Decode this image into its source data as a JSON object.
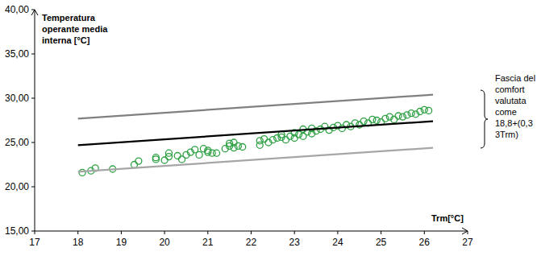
{
  "chart_data": {
    "type": "scatter",
    "y_label": [
      "Temperatura",
      "operante media",
      "interna [°C]"
    ],
    "x_label": "Trm[°C]",
    "annotation": [
      "Fascia del",
      "comfort",
      "valutata",
      "come",
      "18,8+(0,3",
      "3Trm)"
    ],
    "xlim": [
      17,
      27
    ],
    "xticks": [
      17,
      18,
      19,
      20,
      21,
      22,
      23,
      24,
      25,
      26,
      27
    ],
    "ylim": [
      15,
      40
    ],
    "yticks": [
      {
        "value": 15,
        "label": "15,00"
      },
      {
        "value": 20,
        "label": "20,00"
      },
      {
        "value": 25,
        "label": "25,00"
      },
      {
        "value": 30,
        "label": "30,00"
      },
      {
        "value": 35,
        "label": "35,00"
      },
      {
        "value": 40,
        "label": "40,00"
      }
    ],
    "grid": false,
    "series": [
      {
        "type": "scatter",
        "color": "#2ea043",
        "marker": "circle",
        "x": [
          18.1,
          18.3,
          18.4,
          18.8,
          19.3,
          19.4,
          19.8,
          19.8,
          20.0,
          20.1,
          20.1,
          20.3,
          20.4,
          20.5,
          20.6,
          20.7,
          20.8,
          20.9,
          21.0,
          21.0,
          21.1,
          21.2,
          21.4,
          21.5,
          21.5,
          21.6,
          21.6,
          21.7,
          21.8,
          22.2,
          22.2,
          22.3,
          22.4,
          22.5,
          22.6,
          22.7,
          22.7,
          22.8,
          22.9,
          23.0,
          23.0,
          23.1,
          23.2,
          23.2,
          23.3,
          23.4,
          23.4,
          23.5,
          23.6,
          23.7,
          23.8,
          23.9,
          24.0,
          24.1,
          24.2,
          24.3,
          24.4,
          24.5,
          24.6,
          24.7,
          24.8,
          24.9,
          25.0,
          25.1,
          25.2,
          25.3,
          25.4,
          25.5,
          25.6,
          25.7,
          25.8,
          25.9,
          26.0,
          26.1
        ],
        "values": [
          21.6,
          21.8,
          22.1,
          22.0,
          22.5,
          22.9,
          23.3,
          23.1,
          23.0,
          23.4,
          23.8,
          23.5,
          23.1,
          23.6,
          23.9,
          24.2,
          23.6,
          24.3,
          23.9,
          24.1,
          23.8,
          23.8,
          24.3,
          24.6,
          24.9,
          24.4,
          25.0,
          24.6,
          24.5,
          24.7,
          25.2,
          25.4,
          25.0,
          25.3,
          25.5,
          25.6,
          25.9,
          25.3,
          25.7,
          25.5,
          26.1,
          25.9,
          25.7,
          26.5,
          26.2,
          26.0,
          26.6,
          26.3,
          26.5,
          26.8,
          26.4,
          26.7,
          26.9,
          26.6,
          27.0,
          26.8,
          27.2,
          27.0,
          27.4,
          27.2,
          27.6,
          27.5,
          27.3,
          27.7,
          27.9,
          27.6,
          28.0,
          27.9,
          28.1,
          28.3,
          28.2,
          28.5,
          28.7,
          28.6
        ]
      },
      {
        "type": "line",
        "color": "#808080",
        "x": [
          18.0,
          26.2
        ],
        "values": [
          27.7,
          30.4
        ]
      },
      {
        "type": "line",
        "color": "#000000",
        "x": [
          18.0,
          26.2
        ],
        "values": [
          24.7,
          27.4
        ]
      },
      {
        "type": "line",
        "color": "#a6a6a6",
        "x": [
          18.0,
          26.2
        ],
        "values": [
          21.7,
          24.4
        ]
      }
    ]
  }
}
